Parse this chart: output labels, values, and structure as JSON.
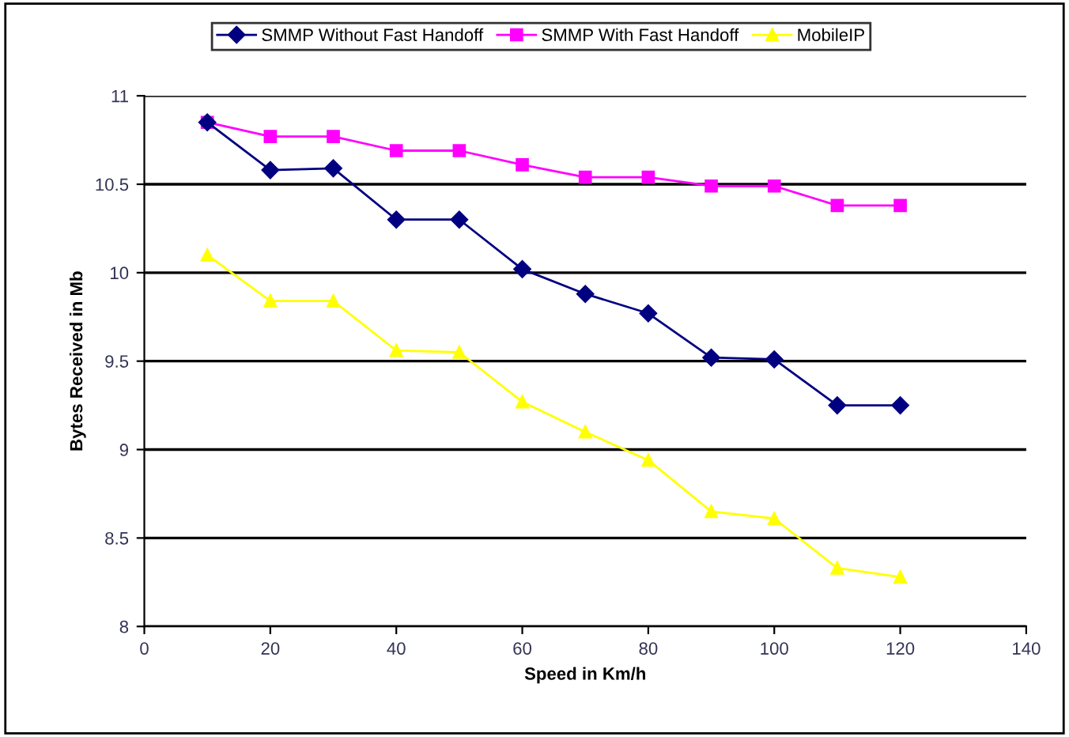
{
  "chart_data": {
    "type": "line",
    "xlabel": "Speed in Km/h",
    "ylabel": "Bytes Received in Mb",
    "x": [
      10,
      20,
      30,
      40,
      50,
      60,
      70,
      80,
      90,
      100,
      110,
      120
    ],
    "series": [
      {
        "name": "SMMP Without Fast Handoff",
        "color": "#000080",
        "marker": "diamond",
        "values": [
          10.85,
          10.58,
          10.59,
          10.3,
          10.3,
          10.02,
          9.88,
          9.77,
          9.52,
          9.51,
          9.25,
          9.25
        ]
      },
      {
        "name": "SMMP With Fast Handoff",
        "color": "#ff00ff",
        "marker": "square",
        "values": [
          10.85,
          10.77,
          10.77,
          10.69,
          10.69,
          10.61,
          10.54,
          10.54,
          10.49,
          10.49,
          10.38,
          10.38
        ]
      },
      {
        "name": "MobileIP",
        "color": "#ffff00",
        "marker": "triangle",
        "values": [
          10.1,
          9.84,
          9.84,
          9.56,
          9.55,
          9.27,
          9.1,
          8.94,
          8.65,
          8.61,
          8.33,
          8.28
        ]
      }
    ],
    "xlim": [
      0,
      140
    ],
    "xticks": [
      0,
      20,
      40,
      60,
      80,
      100,
      120,
      140
    ],
    "ylim": [
      8,
      11
    ],
    "yticks": [
      8,
      8.5,
      9,
      9.5,
      10,
      10.5,
      11
    ],
    "grid": "y",
    "legend": "top",
    "line_style": "solid"
  }
}
